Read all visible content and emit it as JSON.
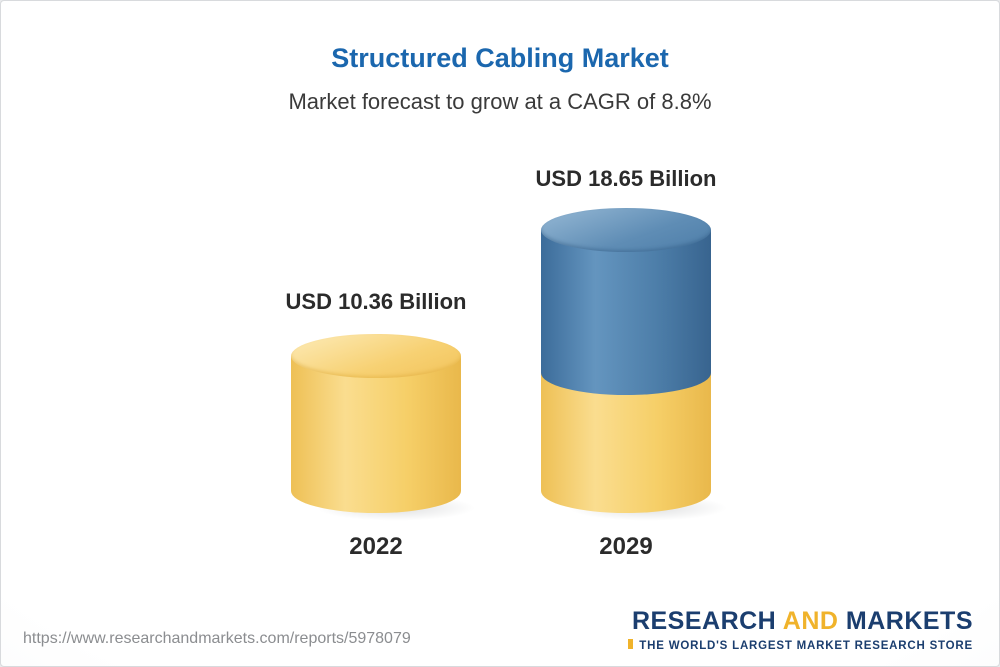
{
  "header": {
    "title": "Structured Cabling Market",
    "subtitle": "Market forecast to grow at a CAGR of 8.8%"
  },
  "chart_data": {
    "type": "bar",
    "bar_style": "3d-cylinder",
    "title": "Structured Cabling Market",
    "subtitle": "Market forecast to grow at a CAGR of 8.8%",
    "unit": "USD Billion",
    "cagr_percent": 8.8,
    "categories": [
      "2022",
      "2029"
    ],
    "values": [
      10.36,
      18.65
    ],
    "value_labels": [
      "USD 10.36 Billion",
      "USD 18.65 Billion"
    ],
    "series_note": "2029 bar shows 2022 base (gold) plus forecast growth (blue)",
    "legend": "none",
    "axes": "none",
    "colors": {
      "base_segment": "#F6CF68",
      "growth_segment": "#4D7EA9",
      "title": "#1B67AE",
      "label_text": "#2B2B2B"
    }
  },
  "footer": {
    "url": "https://www.researchandmarkets.com/reports/5978079",
    "logo": {
      "word_research": "RESEARCH ",
      "word_and": "AND",
      "word_markets": " MARKETS",
      "tagline": "THE WORLD'S LARGEST MARKET RESEARCH STORE",
      "color_primary": "#1B3E6F",
      "color_accent": "#F0B32B"
    }
  }
}
